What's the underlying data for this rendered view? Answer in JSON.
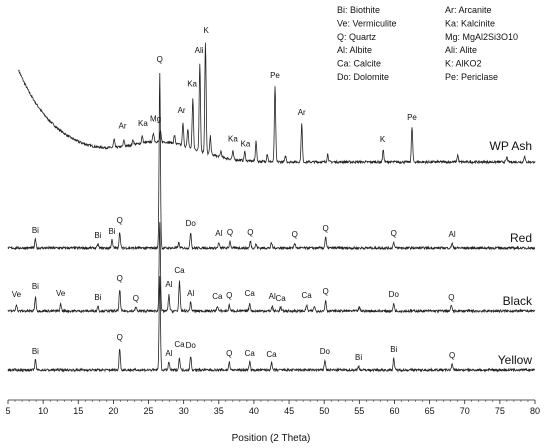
{
  "chart_data": {
    "type": "line",
    "xlabel": "Position (2 Theta)",
    "ylabel": "",
    "xlim": [
      5,
      80
    ],
    "xticks": [
      5,
      10,
      15,
      20,
      25,
      30,
      35,
      40,
      45,
      50,
      55,
      60,
      65,
      70,
      75,
      80
    ],
    "grid": false,
    "legend_position": "top-right",
    "legend": [
      "Bi: Biothite",
      "Ar: Arcanite",
      "Ve: Vermiculite",
      "Ka: Kalcinite",
      "Q: Quartz",
      "Mg: MgAl2Si3O10",
      "Al: Albite",
      "Ali: Alite",
      "Ca: Calcite",
      "K: AlKO2",
      "Do: Dolomite",
      "Pe: Periclase"
    ],
    "series": [
      {
        "name": "WP Ash",
        "baseline": "decay",
        "peaks": [
          [
            20.1,
            8
          ],
          [
            21.5,
            6
          ],
          [
            22.8,
            5
          ],
          [
            24.1,
            7
          ],
          [
            25.7,
            9
          ],
          [
            26.7,
            10
          ],
          [
            28.7,
            8
          ],
          [
            29.9,
            22
          ],
          [
            30.6,
            18
          ],
          [
            31.3,
            50
          ],
          [
            32.3,
            88
          ],
          [
            33.1,
            110
          ],
          [
            33.8,
            18
          ],
          [
            35.3,
            6
          ],
          [
            37.0,
            8
          ],
          [
            38.7,
            9
          ],
          [
            40.3,
            20
          ],
          [
            41.9,
            8
          ],
          [
            43.0,
            75
          ],
          [
            44.5,
            6
          ],
          [
            46.8,
            38
          ],
          [
            50.5,
            8
          ],
          [
            58.4,
            12
          ],
          [
            62.5,
            35
          ],
          [
            69.0,
            7
          ],
          [
            76.0,
            5
          ],
          [
            78.5,
            6
          ]
        ],
        "labels": [
          {
            "t": "Ar",
            "x": 21.3,
            "h": 18
          },
          {
            "t": "Ka",
            "x": 24.2,
            "h": 17
          },
          {
            "t": "Mg",
            "x": 26.0,
            "h": 20
          },
          {
            "t": "Ar",
            "x": 29.7,
            "h": 32
          },
          {
            "t": "Ka",
            "x": 31.2,
            "h": 62
          },
          {
            "t": "Ali",
            "x": 32.2,
            "h": 98
          },
          {
            "t": "K",
            "x": 33.2,
            "h": 120
          },
          {
            "t": "Ka",
            "x": 37.0,
            "h": 18
          },
          {
            "t": "Ka",
            "x": 38.8,
            "h": 14
          },
          {
            "t": "Pe",
            "x": 43.0,
            "h": 84
          },
          {
            "t": "Ar",
            "x": 46.8,
            "h": 47
          },
          {
            "t": "K",
            "x": 58.3,
            "h": 20
          },
          {
            "t": "Pe",
            "x": 62.5,
            "h": 42
          }
        ]
      },
      {
        "name": "Red",
        "peaks": [
          [
            8.9,
            9
          ],
          [
            17.8,
            4
          ],
          [
            19.8,
            8
          ],
          [
            20.9,
            16
          ],
          [
            26.6,
            175
          ],
          [
            29.3,
            5
          ],
          [
            31.0,
            16
          ],
          [
            35.0,
            5
          ],
          [
            36.6,
            7
          ],
          [
            39.5,
            7
          ],
          [
            40.3,
            4
          ],
          [
            42.5,
            5
          ],
          [
            45.8,
            5
          ],
          [
            50.2,
            11
          ],
          [
            59.9,
            6
          ],
          [
            68.2,
            5
          ]
        ],
        "labels": [
          {
            "t": "Bi",
            "x": 8.9,
            "h": 15
          },
          {
            "t": "Bi",
            "x": 17.8,
            "h": 10
          },
          {
            "t": "Bi",
            "x": 19.8,
            "h": 14
          },
          {
            "t": "Q",
            "x": 20.9,
            "h": 25
          },
          {
            "t": "Q",
            "x": 26.6,
            "h": 186
          },
          {
            "t": "Do",
            "x": 31.0,
            "h": 22
          },
          {
            "t": "Al",
            "x": 35.0,
            "h": 12
          },
          {
            "t": "Q",
            "x": 36.6,
            "h": 13
          },
          {
            "t": "Q",
            "x": 39.5,
            "h": 13
          },
          {
            "t": "Q",
            "x": 45.8,
            "h": 11
          },
          {
            "t": "Q",
            "x": 50.2,
            "h": 17
          },
          {
            "t": "Q",
            "x": 59.9,
            "h": 12
          },
          {
            "t": "Al",
            "x": 68.2,
            "h": 11
          }
        ]
      },
      {
        "name": "Black",
        "peaks": [
          [
            6.2,
            7
          ],
          [
            8.9,
            14
          ],
          [
            12.5,
            7
          ],
          [
            17.8,
            5
          ],
          [
            20.9,
            22
          ],
          [
            23.2,
            4
          ],
          [
            26.6,
            90
          ],
          [
            27.9,
            16
          ],
          [
            29.4,
            30
          ],
          [
            31.0,
            9
          ],
          [
            34.8,
            5
          ],
          [
            36.5,
            6
          ],
          [
            39.4,
            8
          ],
          [
            42.6,
            5
          ],
          [
            43.8,
            4
          ],
          [
            47.5,
            6
          ],
          [
            48.6,
            5
          ],
          [
            50.2,
            11
          ],
          [
            55.0,
            4
          ],
          [
            59.9,
            8
          ],
          [
            68.1,
            6
          ]
        ],
        "labels": [
          {
            "t": "Ve",
            "x": 6.2,
            "h": 14
          },
          {
            "t": "Bi",
            "x": 8.9,
            "h": 22
          },
          {
            "t": "Ve",
            "x": 12.5,
            "h": 15
          },
          {
            "t": "Bi",
            "x": 17.8,
            "h": 11
          },
          {
            "t": "Q",
            "x": 20.9,
            "h": 30
          },
          {
            "t": "Q",
            "x": 23.2,
            "h": 10
          },
          {
            "t": "Al",
            "x": 27.9,
            "h": 24
          },
          {
            "t": "Ca",
            "x": 29.4,
            "h": 38
          },
          {
            "t": "Al",
            "x": 31.0,
            "h": 15
          },
          {
            "t": "Ca",
            "x": 34.8,
            "h": 12
          },
          {
            "t": "Q",
            "x": 36.5,
            "h": 13
          },
          {
            "t": "Ca",
            "x": 39.4,
            "h": 15
          },
          {
            "t": "Al",
            "x": 42.6,
            "h": 12
          },
          {
            "t": "Ca",
            "x": 43.8,
            "h": 10
          },
          {
            "t": "Ca",
            "x": 47.5,
            "h": 13
          },
          {
            "t": "Q",
            "x": 50.2,
            "h": 17
          },
          {
            "t": "Do",
            "x": 59.9,
            "h": 14
          },
          {
            "t": "Q",
            "x": 68.1,
            "h": 11
          }
        ]
      },
      {
        "name": "Yellow",
        "peaks": [
          [
            8.9,
            10
          ],
          [
            20.9,
            22
          ],
          [
            26.6,
            95
          ],
          [
            27.9,
            8
          ],
          [
            29.4,
            12
          ],
          [
            31.0,
            14
          ],
          [
            36.5,
            8
          ],
          [
            39.4,
            8
          ],
          [
            42.5,
            7
          ],
          [
            50.1,
            10
          ],
          [
            54.9,
            4
          ],
          [
            59.9,
            12
          ],
          [
            68.2,
            6
          ]
        ],
        "labels": [
          {
            "t": "Bi",
            "x": 8.9,
            "h": 16
          },
          {
            "t": "Q",
            "x": 20.9,
            "h": 30
          },
          {
            "t": "Al",
            "x": 27.9,
            "h": 14
          },
          {
            "t": "Ca",
            "x": 29.4,
            "h": 23
          },
          {
            "t": "Do",
            "x": 31.0,
            "h": 22
          },
          {
            "t": "Q",
            "x": 36.5,
            "h": 14
          },
          {
            "t": "Ca",
            "x": 39.4,
            "h": 14
          },
          {
            "t": "Ca",
            "x": 42.5,
            "h": 13
          },
          {
            "t": "Do",
            "x": 50.1,
            "h": 16
          },
          {
            "t": "Bi",
            "x": 54.9,
            "h": 10
          },
          {
            "t": "Bi",
            "x": 59.9,
            "h": 18
          },
          {
            "t": "Q",
            "x": 68.2,
            "h": 12
          }
        ]
      }
    ]
  }
}
